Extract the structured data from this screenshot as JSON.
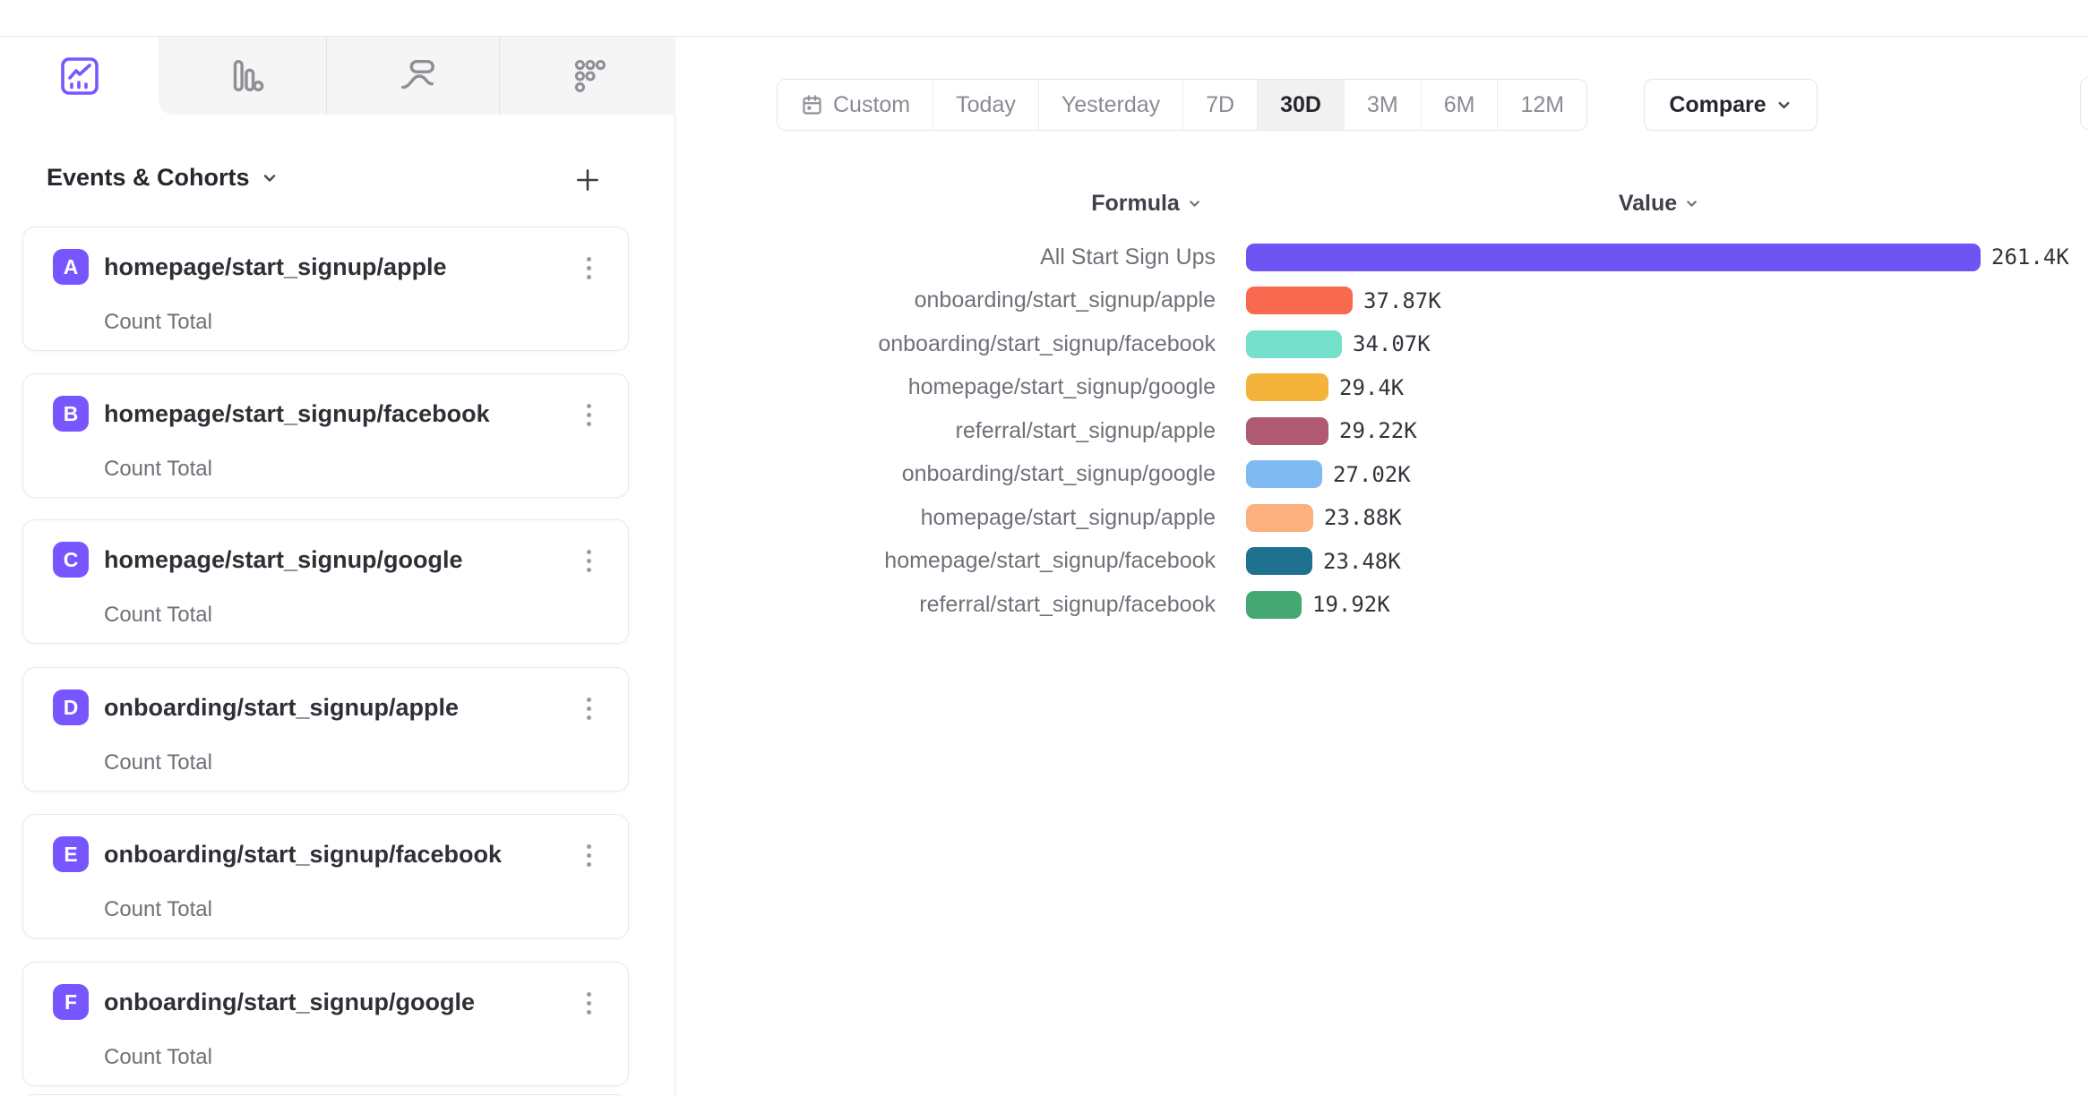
{
  "colors": {
    "accent": "#7856ff"
  },
  "sidebar": {
    "tabs": [
      {
        "icon": "line-chart-icon",
        "active": true
      },
      {
        "icon": "bar-chart-icon",
        "active": false
      },
      {
        "icon": "flows-icon",
        "active": false
      },
      {
        "icon": "retention-dots-icon",
        "active": false
      }
    ],
    "header": {
      "title": "Events & Cohorts"
    },
    "cards": [
      {
        "badge": "A",
        "title": "homepage/start_signup/apple",
        "metric": "Count Total"
      },
      {
        "badge": "B",
        "title": "homepage/start_signup/facebook",
        "metric": "Count Total"
      },
      {
        "badge": "C",
        "title": "homepage/start_signup/google",
        "metric": "Count Total"
      },
      {
        "badge": "D",
        "title": "onboarding/start_signup/apple",
        "metric": "Count Total"
      },
      {
        "badge": "E",
        "title": "onboarding/start_signup/facebook",
        "metric": "Count Total"
      },
      {
        "badge": "F",
        "title": "onboarding/start_signup/google",
        "metric": "Count Total"
      }
    ]
  },
  "toolbar": {
    "date_range": {
      "options": [
        "Custom",
        "Today",
        "Yesterday",
        "7D",
        "30D",
        "3M",
        "6M",
        "12M"
      ],
      "selected": "30D"
    },
    "compare_label": "Compare"
  },
  "table": {
    "formula_header": "Formula",
    "value_header": "Value"
  },
  "chart_data": {
    "type": "bar",
    "orientation": "horizontal",
    "title": "",
    "xlabel": "Value",
    "ylabel": "Formula",
    "xlim": [
      0,
      261400
    ],
    "grid": false,
    "legend": false,
    "categories": [
      "All Start Sign Ups",
      "onboarding/start_signup/apple",
      "onboarding/start_signup/facebook",
      "homepage/start_signup/google",
      "referral/start_signup/apple",
      "onboarding/start_signup/google",
      "homepage/start_signup/apple",
      "homepage/start_signup/facebook",
      "referral/start_signup/facebook"
    ],
    "values": [
      261400,
      37870,
      34070,
      29400,
      29220,
      27020,
      23880,
      23480,
      19920
    ],
    "value_labels": [
      "261.4K",
      "37.87K",
      "34.07K",
      "29.4K",
      "29.22K",
      "27.02K",
      "23.88K",
      "23.48K",
      "19.92K"
    ],
    "colors": [
      "#6c55f2",
      "#f9694f",
      "#74dfca",
      "#f4b33a",
      "#af5a71",
      "#7fbaf2",
      "#fbb07e",
      "#1f7190",
      "#43a872"
    ]
  }
}
